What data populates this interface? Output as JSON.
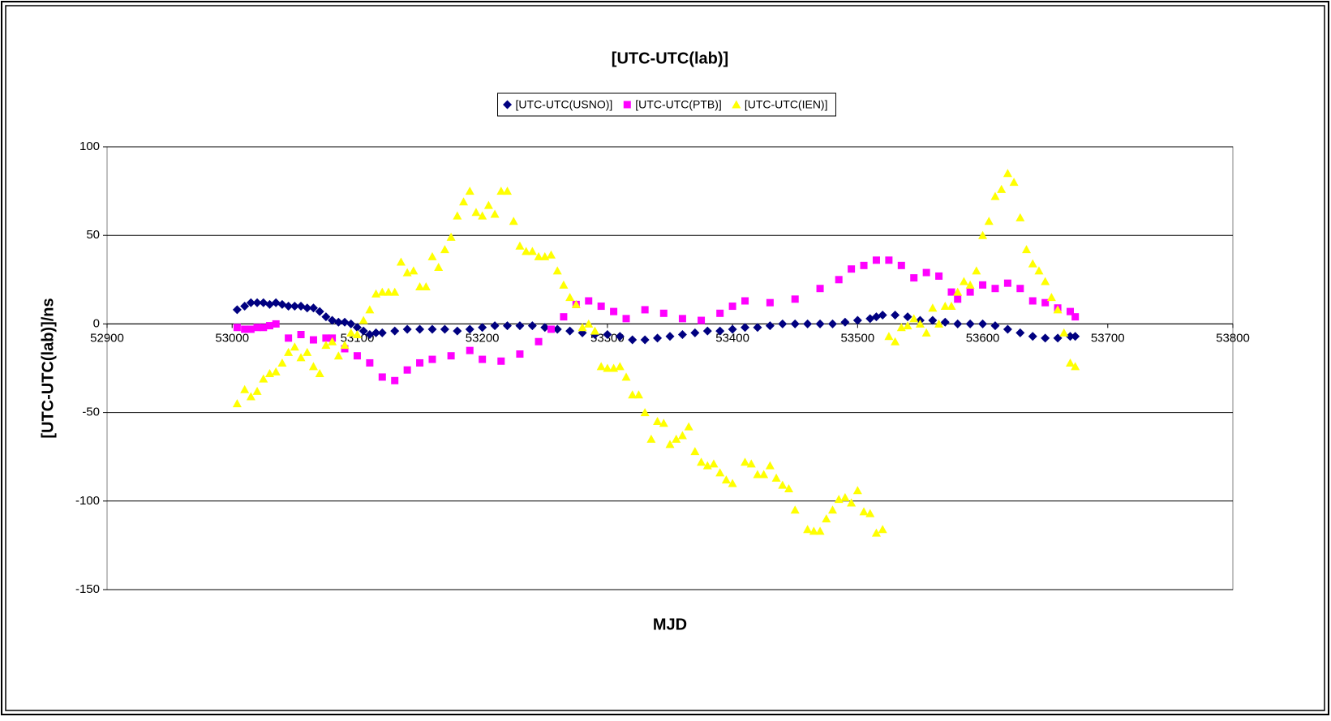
{
  "chart_data": {
    "type": "scatter",
    "title": "[UTC-UTC(lab)]",
    "xlabel": "MJD",
    "ylabel": "[UTC-UTC(lab)]/ns",
    "xlim": [
      52900,
      53800
    ],
    "xticks": [
      52900,
      53000,
      53100,
      53200,
      53300,
      53400,
      53500,
      53600,
      53700,
      53800
    ],
    "ylim": [
      -150,
      100
    ],
    "yticks": [
      -150,
      -100,
      -50,
      0,
      50,
      100
    ],
    "grid": true,
    "legend": "top",
    "series": [
      {
        "name": "[UTC-UTC(USNO)]",
        "color": "#000080",
        "marker": "diamond",
        "x": [
          53004,
          53010,
          53015,
          53020,
          53025,
          53030,
          53035,
          53040,
          53045,
          53050,
          53055,
          53060,
          53065,
          53070,
          53075,
          53080,
          53085,
          53090,
          53095,
          53100,
          53105,
          53110,
          53115,
          53120,
          53130,
          53140,
          53150,
          53160,
          53170,
          53180,
          53190,
          53200,
          53210,
          53220,
          53230,
          53240,
          53250,
          53260,
          53270,
          53280,
          53290,
          53300,
          53310,
          53320,
          53330,
          53340,
          53350,
          53360,
          53370,
          53380,
          53390,
          53400,
          53410,
          53420,
          53430,
          53440,
          53450,
          53460,
          53470,
          53480,
          53490,
          53500,
          53510,
          53515,
          53520,
          53530,
          53540,
          53550,
          53560,
          53570,
          53580,
          53590,
          53600,
          53610,
          53620,
          53630,
          53640,
          53650,
          53660,
          53670,
          53674
        ],
        "values": [
          8,
          10,
          12,
          12,
          12,
          11,
          12,
          11,
          10,
          10,
          10,
          9,
          9,
          7,
          4,
          2,
          1,
          1,
          0,
          -2,
          -4,
          -6,
          -5,
          -5,
          -4,
          -3,
          -3,
          -3,
          -3,
          -4,
          -3,
          -2,
          -1,
          -1,
          -1,
          -1,
          -2,
          -3,
          -4,
          -5,
          -6,
          -6,
          -7,
          -9,
          -9,
          -8,
          -7,
          -6,
          -5,
          -4,
          -4,
          -3,
          -2,
          -2,
          -1,
          0,
          0,
          0,
          0,
          0,
          1,
          2,
          3,
          4,
          5,
          5,
          4,
          2,
          2,
          1,
          0,
          0,
          0,
          -1,
          -3,
          -5,
          -7,
          -8,
          -8,
          -7,
          -7
        ]
      },
      {
        "name": "[UTC-UTC(PTB)]",
        "color": "#ff00ff",
        "marker": "square",
        "x": [
          53004,
          53010,
          53015,
          53020,
          53025,
          53030,
          53035,
          53045,
          53055,
          53065,
          53075,
          53080,
          53090,
          53100,
          53110,
          53120,
          53130,
          53140,
          53150,
          53160,
          53175,
          53190,
          53200,
          53215,
          53230,
          53245,
          53255,
          53265,
          53275,
          53285,
          53295,
          53305,
          53315,
          53330,
          53345,
          53360,
          53375,
          53390,
          53400,
          53410,
          53430,
          53450,
          53470,
          53485,
          53495,
          53505,
          53515,
          53525,
          53535,
          53545,
          53555,
          53565,
          53575,
          53580,
          53590,
          53600,
          53610,
          53620,
          53630,
          53640,
          53650,
          53660,
          53670,
          53674
        ],
        "values": [
          -2,
          -3,
          -3,
          -2,
          -2,
          -1,
          0,
          -8,
          -6,
          -9,
          -8,
          -8,
          -14,
          -18,
          -22,
          -30,
          -32,
          -26,
          -22,
          -20,
          -18,
          -15,
          -20,
          -21,
          -17,
          -10,
          -3,
          4,
          11,
          13,
          10,
          7,
          3,
          8,
          6,
          3,
          2,
          6,
          10,
          13,
          12,
          14,
          20,
          25,
          31,
          33,
          36,
          36,
          33,
          26,
          29,
          27,
          18,
          14,
          18,
          22,
          20,
          23,
          20,
          13,
          12,
          9,
          7,
          4
        ]
      },
      {
        "name": "[UTC-UTC(IEN)]",
        "color": "#ffff00",
        "marker": "triangle",
        "x": [
          53004,
          53010,
          53015,
          53020,
          53025,
          53030,
          53035,
          53040,
          53045,
          53050,
          53055,
          53060,
          53065,
          53070,
          53075,
          53080,
          53085,
          53090,
          53095,
          53100,
          53105,
          53110,
          53115,
          53120,
          53125,
          53130,
          53135,
          53140,
          53145,
          53150,
          53155,
          53160,
          53165,
          53170,
          53175,
          53180,
          53185,
          53190,
          53195,
          53200,
          53205,
          53210,
          53215,
          53220,
          53225,
          53230,
          53235,
          53240,
          53245,
          53250,
          53255,
          53260,
          53265,
          53270,
          53275,
          53280,
          53285,
          53290,
          53295,
          53300,
          53305,
          53310,
          53315,
          53320,
          53325,
          53330,
          53335,
          53340,
          53345,
          53350,
          53355,
          53360,
          53365,
          53370,
          53375,
          53380,
          53385,
          53390,
          53395,
          53400,
          53410,
          53415,
          53420,
          53425,
          53430,
          53435,
          53440,
          53445,
          53450,
          53460,
          53465,
          53470,
          53475,
          53480,
          53485,
          53490,
          53495,
          53500,
          53505,
          53510,
          53515,
          53520,
          53525,
          53530,
          53535,
          53540,
          53545,
          53550,
          53555,
          53560,
          53565,
          53570,
          53575,
          53580,
          53585,
          53590,
          53595,
          53600,
          53605,
          53610,
          53615,
          53620,
          53625,
          53630,
          53635,
          53640,
          53645,
          53650,
          53655,
          53660,
          53665,
          53670,
          53674
        ],
        "values": [
          -45,
          -37,
          -41,
          -38,
          -31,
          -28,
          -27,
          -22,
          -16,
          -13,
          -19,
          -16,
          -24,
          -28,
          -12,
          -10,
          -18,
          -12,
          -5,
          -6,
          2,
          8,
          17,
          18,
          18,
          18,
          35,
          29,
          30,
          21,
          21,
          38,
          32,
          42,
          49,
          61,
          69,
          75,
          63,
          61,
          67,
          62,
          75,
          75,
          58,
          44,
          41,
          41,
          38,
          38,
          39,
          30,
          22,
          15,
          11,
          -2,
          0,
          -4,
          -24,
          -25,
          -25,
          -24,
          -30,
          -40,
          -40,
          -50,
          -65,
          -55,
          -56,
          -68,
          -65,
          -63,
          -58,
          -72,
          -78,
          -80,
          -79,
          -84,
          -88,
          -90,
          -78,
          -79,
          -85,
          -85,
          -80,
          -87,
          -91,
          -93,
          -105,
          -116,
          -117,
          -117,
          -110,
          -105,
          -99,
          -98,
          -101,
          -94,
          -106,
          -107,
          -118,
          -116,
          -7,
          -10,
          -2,
          -1,
          3,
          0,
          -5,
          9,
          0,
          10,
          10,
          18,
          24,
          22,
          30,
          50,
          58,
          72,
          76,
          85,
          80,
          60,
          42,
          34,
          30,
          24,
          15,
          8,
          -5,
          -22,
          -24
        ]
      }
    ]
  }
}
